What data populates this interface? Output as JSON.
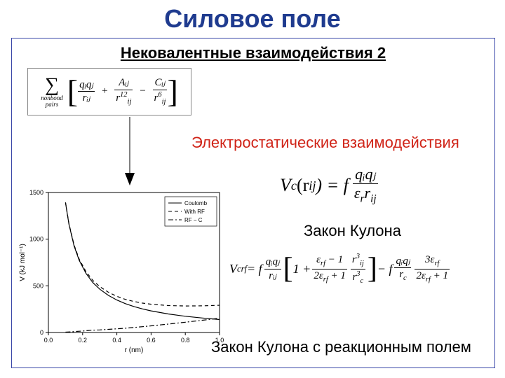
{
  "title": "Силовое поле",
  "subtitle": "Нековалентные взаимодействия 2",
  "formula_box": {
    "sigma_sub1": "nonbond",
    "sigma_sub2": "pairs",
    "term1_num": "qᵢqⱼ",
    "term1_den": "rᵢⱼ",
    "term2_num": "Aᵢⱼ",
    "term2_den_base": "r",
    "term2_den_sub": "ij",
    "term2_den_sup": "12",
    "term3_num": "Cᵢⱼ",
    "term3_den_base": "r",
    "term3_den_sub": "ij",
    "term3_den_sup": "6"
  },
  "labels": {
    "electrostatic": "Электростатические  взаимодействия",
    "coulomb_law": "Закон Кулона",
    "coulomb_rf": "Закон Кулона с реакционным полем"
  },
  "coulomb_eq": {
    "lhs": "V",
    "lhs_sub": "c",
    "lhs_arg": "(r",
    "lhs_arg_sub": "ij",
    "lhs_arg_close": ") = f",
    "num": "qᵢqⱼ",
    "den_eps": "ε",
    "den_eps_sub": "r",
    "den_r": "r",
    "den_r_sub": "ij"
  },
  "rf_eq": {
    "lhs": "V",
    "lhs_sub": "crf",
    "eq": "  =  f",
    "f1_num": "qᵢqⱼ",
    "f1_den": "rᵢⱼ",
    "inner_one": "1 + ",
    "inner_f_num_eps": "ε",
    "inner_f_num_eps_sub": "rf",
    "inner_f_num_rest": " − 1",
    "inner_f_den_two": "2",
    "inner_f_den_eps": "ε",
    "inner_f_den_eps_sub": "rf",
    "inner_f_den_rest": " + 1",
    "inner_f2_num_r": "r",
    "inner_f2_num_sub": "ij",
    "inner_f2_num_sup": "3",
    "inner_f2_den_r": "r",
    "inner_f2_den_sub": "c",
    "inner_f2_den_sup": "3",
    "minus": " − f",
    "t2_f1_num": "qᵢqⱼ",
    "t2_f1_den_r": "r",
    "t2_f1_den_sub": "c",
    "t2_f2_num_three": "3",
    "t2_f2_num_eps": "ε",
    "t2_f2_num_eps_sub": "rf",
    "t2_f2_den_two": "2",
    "t2_f2_den_eps": "ε",
    "t2_f2_den_eps_sub": "rf",
    "t2_f2_den_rest": " + 1"
  },
  "chart": {
    "type": "line",
    "xlabel": "r (nm)",
    "ylabel": "V (kJ mol⁻¹)",
    "xlim": [
      0.0,
      1.0
    ],
    "ylim": [
      0,
      1500
    ],
    "xticks": [
      0.0,
      0.2,
      0.4,
      0.6,
      0.8,
      1.0
    ],
    "yticks": [
      0,
      500,
      1000,
      1500
    ],
    "background_color": "#ffffff",
    "axis_color": "#000000",
    "tick_fontsize": 9,
    "label_fontsize": 10,
    "legend": {
      "position": "top-right",
      "fontsize": 8,
      "items": [
        {
          "label": "Coulomb",
          "style": "solid"
        },
        {
          "label": "With RF",
          "style": "dashed"
        },
        {
          "label": "RF − C",
          "style": "dashdot"
        }
      ]
    },
    "line_color": "#000000",
    "line_width": 1.2,
    "series": [
      {
        "name": "Coulomb",
        "style": "solid",
        "points": [
          [
            0.1,
            1390
          ],
          [
            0.12,
            1160
          ],
          [
            0.15,
            928
          ],
          [
            0.18,
            773
          ],
          [
            0.22,
            632
          ],
          [
            0.26,
            535
          ],
          [
            0.3,
            464
          ],
          [
            0.35,
            398
          ],
          [
            0.4,
            348
          ],
          [
            0.45,
            309
          ],
          [
            0.5,
            278
          ],
          [
            0.55,
            253
          ],
          [
            0.6,
            232
          ],
          [
            0.7,
            199
          ],
          [
            0.8,
            174
          ],
          [
            0.9,
            155
          ],
          [
            1.0,
            139
          ]
        ]
      },
      {
        "name": "With RF",
        "style": "dashed",
        "points": [
          [
            0.1,
            1394
          ],
          [
            0.12,
            1166
          ],
          [
            0.15,
            938
          ],
          [
            0.18,
            786
          ],
          [
            0.22,
            650
          ],
          [
            0.26,
            558
          ],
          [
            0.3,
            492
          ],
          [
            0.35,
            432
          ],
          [
            0.4,
            388
          ],
          [
            0.45,
            355
          ],
          [
            0.5,
            332
          ],
          [
            0.55,
            315
          ],
          [
            0.6,
            303
          ],
          [
            0.7,
            289
          ],
          [
            0.8,
            284
          ],
          [
            0.9,
            286
          ],
          [
            1.0,
            292
          ]
        ]
      },
      {
        "name": "RF − C",
        "style": "dashdot",
        "points": [
          [
            0.1,
            4
          ],
          [
            0.15,
            10
          ],
          [
            0.2,
            16
          ],
          [
            0.25,
            24
          ],
          [
            0.3,
            28
          ],
          [
            0.35,
            34
          ],
          [
            0.4,
            40
          ],
          [
            0.45,
            46
          ],
          [
            0.5,
            54
          ],
          [
            0.55,
            62
          ],
          [
            0.6,
            71
          ],
          [
            0.7,
            90
          ],
          [
            0.8,
            110
          ],
          [
            0.9,
            131
          ],
          [
            1.0,
            153
          ]
        ]
      }
    ]
  },
  "colors": {
    "title": "#1f3b8f",
    "border": "#3a47a8",
    "red": "#d02418"
  }
}
